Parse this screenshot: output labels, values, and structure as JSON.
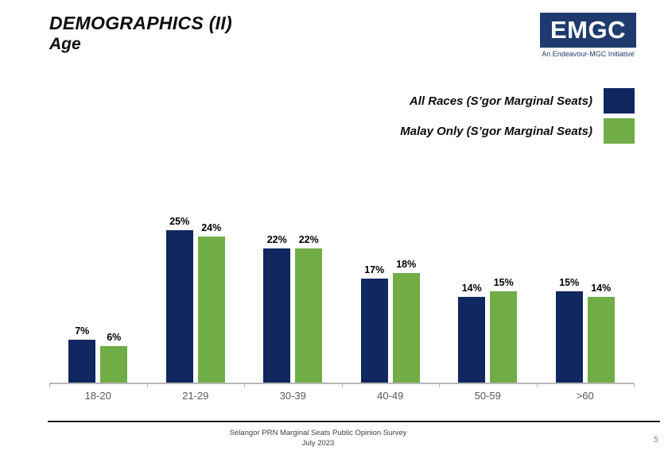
{
  "header": {
    "title_line1": "DEMOGRAPHICS (II)",
    "title_line2": "Age",
    "logo": {
      "text": "EMGC",
      "tagline": "An Endeavour-MGC Initiative",
      "bg_color": "#1e3a6e"
    }
  },
  "legend": [
    {
      "label": "All Races (S’gor Marginal Seats)",
      "color": "#10275f"
    },
    {
      "label": "Malay Only (S’gor Marginal Seats)",
      "color": "#70ad47"
    }
  ],
  "chart_data": {
    "type": "bar",
    "categories": [
      "18-20",
      "21-29",
      "30-39",
      "40-49",
      "50-59",
      ">60"
    ],
    "series": [
      {
        "name": "All Races (S’gor Marginal Seats)",
        "color": "#10275f",
        "values": [
          7,
          25,
          22,
          17,
          14,
          15
        ]
      },
      {
        "name": "Malay Only (S’gor Marginal Seats)",
        "color": "#70ad47",
        "values": [
          6,
          24,
          22,
          18,
          15,
          14
        ]
      }
    ],
    "value_suffix": "%",
    "ylim": [
      0,
      27
    ],
    "grid": false,
    "axis_color": "#b7b7b7",
    "legend_position": "top-right",
    "data_labels": true
  },
  "footer": {
    "line1": "Selangor PRN Marginal Seats Public Opinion Survey",
    "line2": "July 2023",
    "page_number": "5"
  }
}
